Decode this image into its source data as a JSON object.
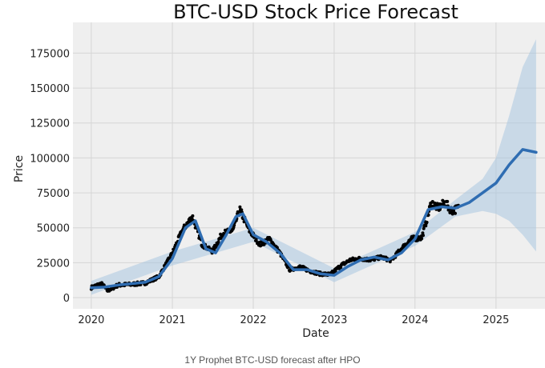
{
  "chart_data": {
    "type": "line",
    "title": "BTC-USD Stock Price Forecast",
    "xlabel": "Date",
    "ylabel": "Price",
    "xlim": [
      "2019-10-10",
      "2025-08-10"
    ],
    "ylim": [
      -8000,
      197000
    ],
    "x_ticks": [
      "2020",
      "2021",
      "2022",
      "2023",
      "2024",
      "2025"
    ],
    "y_ticks": [
      0,
      25000,
      50000,
      75000,
      100000,
      125000,
      150000,
      175000
    ],
    "y_tick_labels": [
      "0",
      "25000",
      "50000",
      "75000",
      "100000",
      "125000",
      "150000",
      "175000"
    ],
    "grid": true,
    "background": "#efefef",
    "colors": {
      "forecast": "#2f6db2",
      "band": "#a9c6e0",
      "observed": "#000000"
    },
    "series": [
      {
        "kind": "forecast-line",
        "x": [
          "2020-01-01",
          "2020-03-01",
          "2020-05-01",
          "2020-07-01",
          "2020-09-01",
          "2020-11-01",
          "2021-01-01",
          "2021-03-01",
          "2021-04-15",
          "2021-06-01",
          "2021-07-15",
          "2021-09-01",
          "2021-10-15",
          "2021-11-15",
          "2022-01-01",
          "2022-03-01",
          "2022-05-01",
          "2022-07-01",
          "2022-09-01",
          "2022-11-01",
          "2023-01-01",
          "2023-03-01",
          "2023-05-01",
          "2023-07-01",
          "2023-09-01",
          "2023-11-01",
          "2024-01-01",
          "2024-03-01",
          "2024-05-01",
          "2024-07-01",
          "2024-09-01",
          "2024-11-01",
          "2025-01-01",
          "2025-03-01",
          "2025-05-01",
          "2025-07-01"
        ],
        "y": [
          7000,
          7500,
          9000,
          10000,
          11000,
          15000,
          28000,
          50000,
          55000,
          35000,
          32000,
          45000,
          58000,
          60000,
          45000,
          40000,
          32000,
          20000,
          20000,
          17000,
          16000,
          22000,
          27000,
          29000,
          27000,
          32000,
          42000,
          63000,
          65000,
          64000,
          68000,
          75000,
          82000,
          95000,
          106000,
          104000
        ]
      },
      {
        "kind": "uncertainty-band",
        "x": [
          "2020-01-01",
          "2021-01-01",
          "2022-01-01",
          "2023-01-01",
          "2024-01-01",
          "2024-07-01",
          "2024-11-01",
          "2025-01-01",
          "2025-03-01",
          "2025-05-01",
          "2025-07-01"
        ],
        "y_upper": [
          12000,
          33000,
          50000,
          21000,
          47000,
          70000,
          85000,
          100000,
          130000,
          165000,
          185000
        ],
        "y_lower": [
          2000,
          23000,
          40000,
          11000,
          37000,
          58000,
          62000,
          60000,
          55000,
          45000,
          33000
        ]
      },
      {
        "kind": "observed-points",
        "x": [
          "2020-01-01",
          "2020-02-15",
          "2020-03-15",
          "2020-05-01",
          "2020-07-01",
          "2020-09-01",
          "2020-11-01",
          "2021-01-01",
          "2021-02-15",
          "2021-04-01",
          "2021-05-15",
          "2021-07-01",
          "2021-08-15",
          "2021-10-01",
          "2021-11-01",
          "2021-12-15",
          "2022-02-01",
          "2022-03-15",
          "2022-05-01",
          "2022-06-15",
          "2022-08-01",
          "2022-09-15",
          "2022-11-01",
          "2022-12-15",
          "2023-02-01",
          "2023-03-15",
          "2023-05-01",
          "2023-06-15",
          "2023-08-01",
          "2023-09-15",
          "2023-11-01",
          "2023-12-15",
          "2024-02-01",
          "2024-03-15",
          "2024-04-15",
          "2024-05-15",
          "2024-06-15",
          "2024-07-15"
        ],
        "y": [
          7200,
          10000,
          5000,
          9000,
          9500,
          10500,
          15000,
          32000,
          48000,
          58000,
          38000,
          33000,
          46000,
          48000,
          63000,
          48000,
          38000,
          42000,
          32000,
          20000,
          22000,
          19000,
          17000,
          16500,
          23000,
          27000,
          28000,
          27000,
          29000,
          26500,
          35000,
          42000,
          43000,
          68000,
          64000,
          68000,
          62000,
          64000
        ]
      }
    ]
  },
  "caption": "1Y Prophet BTC-USD forecast after HPO"
}
